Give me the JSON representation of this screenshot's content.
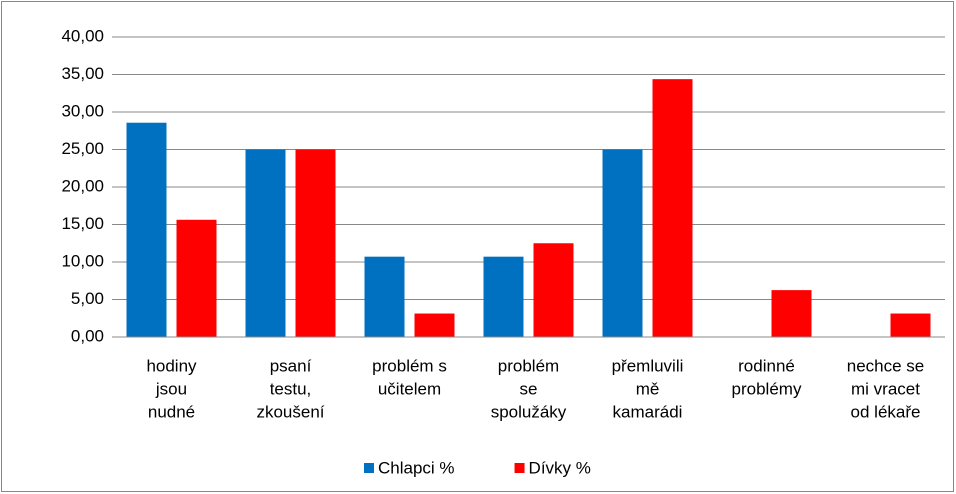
{
  "chart_data": {
    "type": "bar",
    "categories": [
      [
        "hodiny",
        "jsou",
        "nudné"
      ],
      [
        "psaní",
        "testu,",
        "zkoušení"
      ],
      [
        "problém s",
        "učitelem"
      ],
      [
        "problém",
        "se",
        "spolužáky"
      ],
      [
        "přemluvili",
        "mě",
        "kamarádi"
      ],
      [
        "rodinné",
        "problémy"
      ],
      [
        "nechce se",
        "mi vracet",
        "od lékaře"
      ]
    ],
    "series": [
      {
        "name": "Chlapci %",
        "color": "#0070c0",
        "values": [
          28.57,
          25.0,
          10.71,
          10.71,
          25.0,
          0,
          0
        ]
      },
      {
        "name": "Dívky %",
        "color": "#ff0000",
        "values": [
          15.63,
          25.0,
          3.13,
          12.5,
          34.38,
          6.25,
          3.13
        ]
      }
    ],
    "ylim": [
      0,
      40
    ],
    "yticks": [
      {
        "value": 0,
        "label": "0,00"
      },
      {
        "value": 5,
        "label": "5,00"
      },
      {
        "value": 10,
        "label": "10,00"
      },
      {
        "value": 15,
        "label": "15,00"
      },
      {
        "value": 20,
        "label": "20,00"
      },
      {
        "value": 25,
        "label": "25,00"
      },
      {
        "value": 30,
        "label": "30,00"
      },
      {
        "value": 35,
        "label": "35,00"
      },
      {
        "value": 40,
        "label": "40,00"
      }
    ],
    "grid": true,
    "legend": "bottom"
  }
}
